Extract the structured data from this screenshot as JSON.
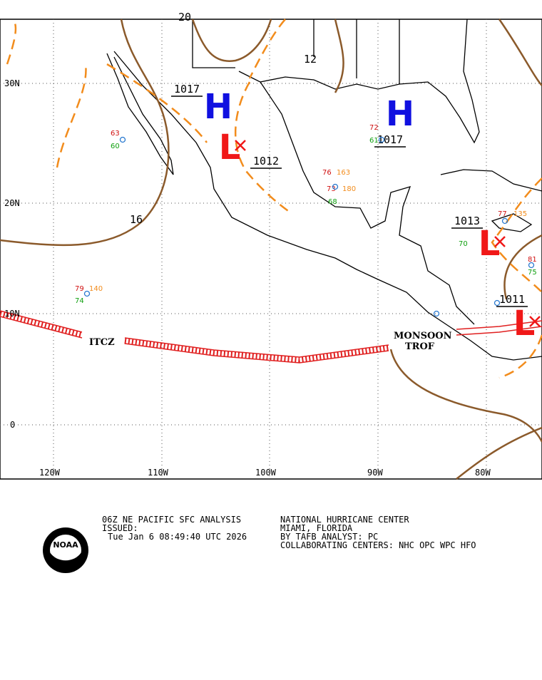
{
  "map": {
    "lat_labels": [
      "30N",
      "20N",
      "10N",
      "0"
    ],
    "lon_labels": [
      "120W",
      "110W",
      "100W",
      "90W",
      "80W"
    ],
    "pressure_centers": [
      {
        "symbol": "H",
        "label": "1017"
      },
      {
        "symbol": "L",
        "label": "1012"
      },
      {
        "symbol": "H",
        "label": "1017"
      },
      {
        "symbol": "L",
        "label": "1013"
      },
      {
        "symbol": "L",
        "label": "1011"
      }
    ],
    "isobar_labels": [
      "20",
      "12",
      "16"
    ],
    "features": [
      "ITCZ",
      "MONSOON",
      "TROF"
    ],
    "stations": [
      "79",
      "140",
      "74",
      "63",
      "60",
      "76",
      "163",
      "73",
      "180",
      "68",
      "72",
      "61",
      "77",
      "135",
      "70",
      "81",
      "75"
    ]
  },
  "footer": {
    "left": [
      "06Z NE PACIFIC SFC ANALYSIS",
      "ISSUED:",
      "Tue Jan 6 08:49:40 UTC 2026"
    ],
    "right": [
      "NATIONAL HURRICANE CENTER",
      "MIAMI, FLORIDA",
      "BY TAFB ANALYST: PC",
      "COLLABORATING CENTERS: NHC OPC WPC HFO"
    ],
    "logo": "NOAA"
  }
}
